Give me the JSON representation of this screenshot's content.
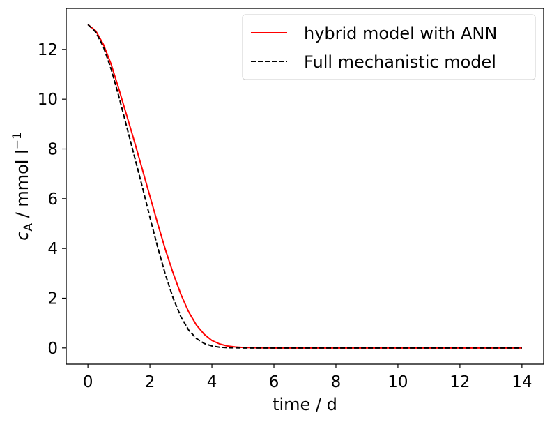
{
  "chart_data": {
    "type": "line",
    "xlabel": "time / d",
    "ylabel": {
      "base": "c",
      "sub": "A",
      "unit": " / mmol l",
      "sup": "−1"
    },
    "xlim": [
      -0.7,
      14.7
    ],
    "ylim": [
      -0.65,
      13.65
    ],
    "xticks": [
      0,
      2,
      4,
      6,
      8,
      10,
      12,
      14
    ],
    "yticks": [
      0,
      2,
      4,
      6,
      8,
      10,
      12
    ],
    "legend_position": "top-right",
    "series": [
      {
        "name": "hybrid model with ANN",
        "color": "#ff0000",
        "dash": "solid",
        "x": [
          0,
          0.25,
          0.5,
          0.75,
          1.0,
          1.25,
          1.5,
          1.75,
          2.0,
          2.25,
          2.5,
          2.75,
          3.0,
          3.25,
          3.5,
          3.75,
          4.0,
          4.25,
          4.5,
          4.75,
          5.0,
          5.5,
          6.0,
          7.0,
          8.0,
          9.0,
          10.0,
          11.0,
          12.0,
          13.0,
          14.0
        ],
        "y": [
          13.0,
          12.75,
          12.2,
          11.4,
          10.4,
          9.35,
          8.3,
          7.2,
          6.1,
          5.0,
          3.95,
          3.0,
          2.15,
          1.45,
          0.92,
          0.55,
          0.3,
          0.16,
          0.08,
          0.04,
          0.02,
          0.005,
          0.0,
          0.0,
          0.0,
          0.0,
          0.0,
          0.0,
          0.0,
          0.0,
          0.0
        ]
      },
      {
        "name": "Full mechanistic model",
        "color": "#000000",
        "dash": "dashed",
        "x": [
          0,
          0.25,
          0.5,
          0.75,
          1.0,
          1.25,
          1.5,
          1.75,
          2.0,
          2.25,
          2.5,
          2.75,
          3.0,
          3.25,
          3.5,
          3.75,
          4.0,
          4.25,
          4.5,
          4.75,
          5.0,
          5.5,
          6.0,
          7.0,
          8.0,
          9.0,
          10.0,
          11.0,
          12.0,
          13.0,
          14.0
        ],
        "y": [
          13.0,
          12.7,
          12.1,
          11.2,
          10.1,
          8.9,
          7.7,
          6.5,
          5.25,
          4.05,
          2.95,
          2.0,
          1.25,
          0.72,
          0.38,
          0.18,
          0.08,
          0.03,
          0.01,
          0.005,
          0.0,
          0.0,
          0.0,
          0.0,
          0.0,
          0.0,
          0.0,
          0.0,
          0.0,
          0.0,
          0.0
        ]
      }
    ]
  }
}
